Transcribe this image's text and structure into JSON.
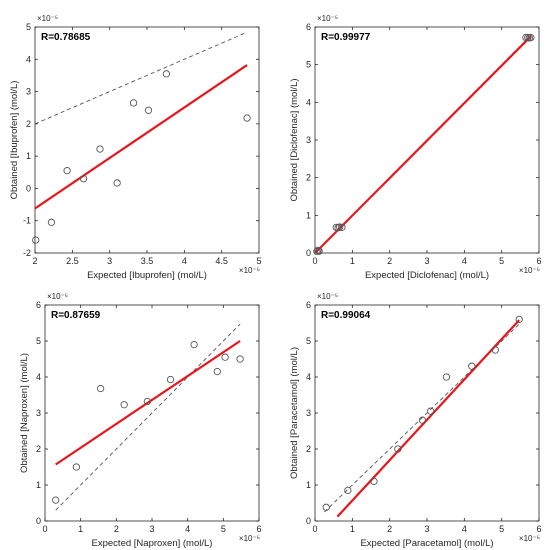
{
  "chart_data": [
    {
      "type": "scatter",
      "annotation": "R=0.78685",
      "xlabel": "Expected [Ibuprofen] (mol/L)",
      "ylabel": "Obtained [Ibuprofen] (mol/L)",
      "x_exponent": "×10⁻⁵",
      "y_exponent": "×10⁻⁵",
      "xlim": [
        2,
        5
      ],
      "ylim": [
        -2,
        5
      ],
      "xticks": [
        2,
        2.5,
        3,
        3.5,
        4,
        4.5,
        5
      ],
      "yticks": [
        -2,
        -1,
        0,
        1,
        2,
        3,
        4,
        5
      ],
      "xtick_labels": [
        "2",
        "2.5",
        "3",
        "3.5",
        "4",
        "4.5",
        "5"
      ],
      "ytick_labels": [
        "-2",
        "-1",
        "0",
        "1",
        "2",
        "3",
        "4",
        "5"
      ],
      "points": [
        [
          2.01,
          -1.6
        ],
        [
          2.22,
          -1.05
        ],
        [
          2.43,
          0.55
        ],
        [
          2.65,
          0.3
        ],
        [
          2.87,
          1.22
        ],
        [
          3.1,
          0.17
        ],
        [
          3.32,
          2.65
        ],
        [
          3.52,
          2.42
        ],
        [
          3.76,
          3.55
        ],
        [
          4.84,
          2.18
        ]
      ],
      "fit_line": [
        [
          2.0,
          -0.62
        ],
        [
          4.84,
          3.82
        ]
      ],
      "ideal_line": [
        [
          2.0,
          2.0
        ],
        [
          4.84,
          4.84
        ]
      ],
      "colors": {
        "fit": "#e8161b",
        "ideal": "#555555",
        "marker": "#555555"
      }
    },
    {
      "type": "scatter",
      "annotation": "R=0.99977",
      "xlabel": "Expected [Diclofenac] (mol/L)",
      "ylabel": "Obtained [Diclofenac] (mol/L)",
      "x_exponent": "×10⁻⁵",
      "y_exponent": "×10⁻⁵",
      "xlim": [
        0,
        6
      ],
      "ylim": [
        0,
        6
      ],
      "xticks": [
        0,
        1,
        2,
        3,
        4,
        5,
        6
      ],
      "yticks": [
        0,
        1,
        2,
        3,
        4,
        5,
        6
      ],
      "xtick_labels": [
        "0",
        "1",
        "2",
        "3",
        "4",
        "5",
        "6"
      ],
      "ytick_labels": [
        "0",
        "1",
        "2",
        "3",
        "4",
        "5",
        "6"
      ],
      "points": [
        [
          0.05,
          0.04
        ],
        [
          0.08,
          0.07
        ],
        [
          0.11,
          0.05
        ],
        [
          0.57,
          0.68
        ],
        [
          0.62,
          0.67
        ],
        [
          0.66,
          0.69
        ],
        [
          0.72,
          0.68
        ],
        [
          5.65,
          5.72
        ],
        [
          5.7,
          5.72
        ],
        [
          5.74,
          5.71
        ],
        [
          5.78,
          5.72
        ]
      ],
      "fit_line": [
        [
          0.0,
          0.0
        ],
        [
          5.78,
          5.75
        ]
      ],
      "ideal_line": [
        [
          0.0,
          0.0
        ],
        [
          5.78,
          5.78
        ]
      ],
      "colors": {
        "fit": "#e8161b",
        "ideal": "#555555",
        "marker": "#555555"
      }
    },
    {
      "type": "scatter",
      "annotation": "R=0.87659",
      "xlabel": "Expected [Naproxen] (mol/L)",
      "ylabel": "Obtained [Naproxen] (mol/L)",
      "x_exponent": "×10⁻⁵",
      "y_exponent": "×10⁻⁵",
      "xlim": [
        0,
        6
      ],
      "ylim": [
        0,
        6
      ],
      "xticks": [
        0,
        1,
        2,
        3,
        4,
        5,
        6
      ],
      "yticks": [
        0,
        1,
        2,
        3,
        4,
        5,
        6
      ],
      "xtick_labels": [
        "0",
        "1",
        "2",
        "3",
        "4",
        "5",
        "6"
      ],
      "ytick_labels": [
        "0",
        "1",
        "2",
        "3",
        "4",
        "5",
        "6"
      ],
      "points": [
        [
          0.3,
          0.58
        ],
        [
          0.88,
          1.5
        ],
        [
          1.56,
          3.68
        ],
        [
          2.22,
          3.23
        ],
        [
          2.87,
          3.32
        ],
        [
          3.52,
          3.93
        ],
        [
          4.18,
          4.9
        ],
        [
          4.83,
          4.15
        ],
        [
          5.05,
          4.55
        ],
        [
          5.47,
          4.5
        ]
      ],
      "fit_line": [
        [
          0.3,
          1.57
        ],
        [
          5.47,
          5.0
        ]
      ],
      "ideal_line": [
        [
          0.3,
          0.3
        ],
        [
          5.47,
          5.47
        ]
      ],
      "colors": {
        "fit": "#e8161b",
        "ideal": "#555555",
        "marker": "#555555"
      }
    },
    {
      "type": "scatter",
      "annotation": "R=0.99064",
      "xlabel": "Expected [Paracetamol] (mol/L)",
      "ylabel": "Obtained [Paracetamol] (mol/L)",
      "x_exponent": "×10⁻⁵",
      "y_exponent": "×10⁻⁵",
      "xlim": [
        0,
        6
      ],
      "ylim": [
        0,
        6
      ],
      "xticks": [
        0,
        1,
        2,
        3,
        4,
        5,
        6
      ],
      "yticks": [
        0,
        1,
        2,
        3,
        4,
        5,
        6
      ],
      "xtick_labels": [
        "0",
        "1",
        "2",
        "3",
        "4",
        "5",
        "6"
      ],
      "ytick_labels": [
        "0",
        "1",
        "2",
        "3",
        "4",
        "5",
        "6"
      ],
      "points": [
        [
          0.3,
          0.38
        ],
        [
          0.88,
          0.85
        ],
        [
          1.58,
          1.1
        ],
        [
          2.22,
          2.0
        ],
        [
          2.88,
          2.8
        ],
        [
          3.1,
          3.05
        ],
        [
          3.52,
          4.0
        ],
        [
          4.2,
          4.3
        ],
        [
          4.83,
          4.75
        ],
        [
          5.47,
          5.6
        ]
      ],
      "fit_line": [
        [
          0.6,
          0.12
        ],
        [
          5.47,
          5.58
        ]
      ],
      "ideal_line": [
        [
          0.25,
          0.25
        ],
        [
          5.47,
          5.47
        ]
      ],
      "colors": {
        "fit": "#e8161b",
        "ideal": "#555555",
        "marker": "#555555"
      }
    }
  ]
}
